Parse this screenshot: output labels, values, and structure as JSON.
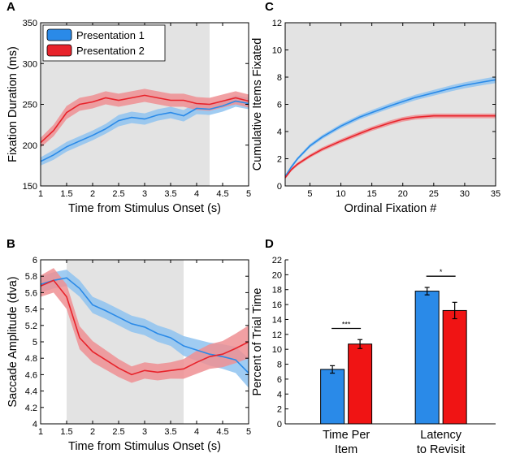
{
  "chart_data": [
    {
      "panel": "A",
      "type": "line",
      "xlabel": "Time from Stimulus Onset (s)",
      "ylabel": "Fixation Duration (ms)",
      "xlim": [
        1,
        5
      ],
      "ylim": [
        150,
        350
      ],
      "xticks": [
        1,
        1.5,
        2,
        2.5,
        3,
        3.5,
        4,
        4.5,
        5
      ],
      "yticks": [
        150,
        200,
        250,
        300,
        350
      ],
      "shaded_region": [
        1,
        4.25
      ],
      "legend": [
        "Presentation 1",
        "Presentation 2"
      ],
      "x": [
        1,
        1.25,
        1.5,
        1.75,
        2,
        2.25,
        2.5,
        2.75,
        3,
        3.25,
        3.5,
        3.75,
        4,
        4.25,
        4.5,
        4.75,
        5
      ],
      "series": [
        {
          "name": "Presentation 1",
          "color": "#2a8ae8",
          "band": "#8fc3f0",
          "values": [
            180,
            188,
            198,
            205,
            212,
            220,
            230,
            234,
            232,
            237,
            240,
            236,
            245,
            244,
            248,
            254,
            251
          ],
          "err": [
            5,
            6,
            6,
            6,
            6,
            6,
            7,
            7,
            7,
            7,
            7,
            7,
            7,
            7,
            7,
            7,
            7
          ]
        },
        {
          "name": "Presentation 2",
          "color": "#e8232b",
          "band": "#ef8f93",
          "values": [
            203,
            218,
            240,
            250,
            253,
            258,
            255,
            258,
            261,
            258,
            255,
            255,
            251,
            250,
            254,
            258,
            254
          ],
          "err": [
            6,
            7,
            8,
            8,
            8,
            8,
            8,
            8,
            8,
            8,
            8,
            8,
            8,
            8,
            8,
            8,
            8
          ]
        }
      ]
    },
    {
      "panel": "B",
      "type": "line",
      "xlabel": "Time from Stimulus Onset (s)",
      "ylabel": "Saccade Amplitude (dva)",
      "xlim": [
        1,
        5
      ],
      "ylim": [
        4,
        6
      ],
      "xticks": [
        1,
        1.5,
        2,
        2.5,
        3,
        3.5,
        4,
        4.5,
        5
      ],
      "yticks": [
        4,
        4.2,
        4.4,
        4.6,
        4.8,
        5,
        5.2,
        5.4,
        5.6,
        5.8,
        6
      ],
      "shaded_region": [
        1.5,
        3.75
      ],
      "x": [
        1,
        1.25,
        1.5,
        1.75,
        2,
        2.25,
        2.5,
        2.75,
        3,
        3.25,
        3.5,
        3.75,
        4,
        4.25,
        4.5,
        4.75,
        5
      ],
      "series": [
        {
          "name": "Presentation 1",
          "color": "#2a8ae8",
          "band": "#8fc3f0",
          "values": [
            5.7,
            5.75,
            5.78,
            5.65,
            5.45,
            5.38,
            5.3,
            5.22,
            5.18,
            5.1,
            5.05,
            4.95,
            4.9,
            4.85,
            4.82,
            4.78,
            4.62
          ],
          "err": [
            0.1,
            0.1,
            0.1,
            0.1,
            0.1,
            0.1,
            0.1,
            0.1,
            0.1,
            0.1,
            0.1,
            0.12,
            0.13,
            0.14,
            0.15,
            0.16,
            0.18
          ]
        },
        {
          "name": "Presentation 2",
          "color": "#e8232b",
          "band": "#ef8f93",
          "values": [
            5.68,
            5.75,
            5.55,
            5.05,
            4.88,
            4.78,
            4.68,
            4.6,
            4.65,
            4.63,
            4.65,
            4.67,
            4.75,
            4.82,
            4.85,
            4.92,
            5.0
          ],
          "err": [
            0.13,
            0.15,
            0.15,
            0.14,
            0.13,
            0.12,
            0.11,
            0.1,
            0.1,
            0.1,
            0.1,
            0.12,
            0.14,
            0.15,
            0.16,
            0.18,
            0.2
          ]
        }
      ]
    },
    {
      "panel": "C",
      "type": "line",
      "xlabel": "Ordinal Fixation #",
      "ylabel": "Cumulative Items Fixated",
      "xlim": [
        1,
        35
      ],
      "ylim": [
        0,
        12
      ],
      "xticks": [
        5,
        10,
        15,
        20,
        25,
        30,
        35
      ],
      "yticks": [
        0,
        2,
        4,
        6,
        8,
        10,
        12
      ],
      "shaded_region": [
        1,
        35
      ],
      "x": [
        1,
        2,
        3,
        5,
        7,
        10,
        13,
        15,
        18,
        20,
        22,
        25,
        28,
        30,
        33,
        35
      ],
      "series": [
        {
          "name": "Presentation 1",
          "color": "#2a8ae8",
          "band": "#8fc3f0",
          "values": [
            0.7,
            1.4,
            2.0,
            2.95,
            3.6,
            4.4,
            5.05,
            5.4,
            5.9,
            6.2,
            6.5,
            6.85,
            7.2,
            7.4,
            7.65,
            7.8
          ],
          "err": [
            0.1,
            0.12,
            0.12,
            0.14,
            0.15,
            0.16,
            0.17,
            0.18,
            0.19,
            0.2,
            0.2,
            0.21,
            0.22,
            0.22,
            0.23,
            0.24
          ]
        },
        {
          "name": "Presentation 2",
          "color": "#e8232b",
          "band": "#ef8f93",
          "values": [
            0.6,
            1.2,
            1.6,
            2.2,
            2.7,
            3.3,
            3.85,
            4.2,
            4.65,
            4.9,
            5.05,
            5.15,
            5.15,
            5.15,
            5.15,
            5.15
          ],
          "err": [
            0.1,
            0.12,
            0.12,
            0.13,
            0.14,
            0.15,
            0.16,
            0.16,
            0.17,
            0.17,
            0.17,
            0.17,
            0.17,
            0.17,
            0.17,
            0.17
          ]
        }
      ]
    },
    {
      "panel": "D",
      "type": "bar",
      "ylabel": "Percent of Trial Time",
      "ylim": [
        0,
        22
      ],
      "yticks": [
        0,
        2,
        4,
        6,
        8,
        10,
        12,
        14,
        16,
        18,
        20,
        22
      ],
      "categories": [
        [
          "Time Per",
          "Item"
        ],
        [
          "Latency",
          "to Revisit"
        ]
      ],
      "series": [
        {
          "name": "Presentation 1",
          "color": "#2a8ae8",
          "values": [
            7.3,
            17.8
          ],
          "err": [
            0.5,
            0.5
          ]
        },
        {
          "name": "Presentation 2",
          "color": "#f01414",
          "values": [
            10.7,
            15.2
          ],
          "err": [
            0.6,
            1.1
          ]
        }
      ],
      "significance": [
        "***",
        "*"
      ]
    }
  ]
}
